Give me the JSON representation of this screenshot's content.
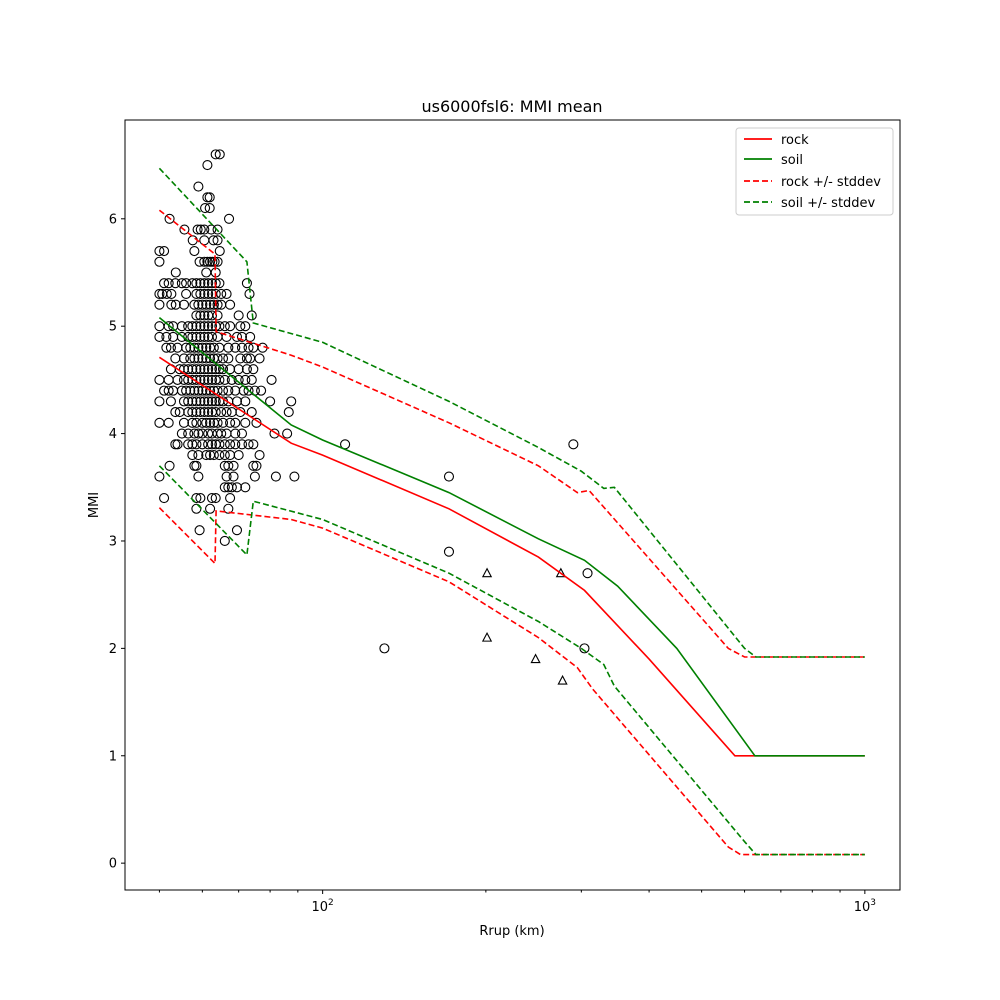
{
  "chart_data": {
    "type": "scatter",
    "title": "us6000fsl6: MMI mean",
    "xlabel": "Rrup (km)",
    "ylabel": "MMI",
    "xscale": "log",
    "xlim": [
      43.2,
      1161
    ],
    "ylim": [
      -0.25,
      6.92
    ],
    "yticks": [
      "0",
      "1",
      "2",
      "3",
      "4",
      "5",
      "6"
    ],
    "xticks": [
      {
        "value": 100,
        "base": "10",
        "exp": "2"
      },
      {
        "value": 1000,
        "base": "10",
        "exp": "3"
      }
    ],
    "legend": {
      "placement": "top-right",
      "entries": [
        "rock",
        "soil",
        "rock +/- stddev",
        "soil +/- stddev"
      ]
    },
    "colors": {
      "rock": "#ff0000",
      "soil": "#008000",
      "marker": "#000000"
    },
    "lines": [
      {
        "name": "rock",
        "color": "#ff0000",
        "dashed": false,
        "points": [
          [
            50,
            4.71
          ],
          [
            87.5,
            3.91
          ],
          [
            100,
            3.8
          ],
          [
            171,
            3.3
          ],
          [
            250,
            2.85
          ],
          [
            304,
            2.54
          ],
          [
            400,
            1.9
          ],
          [
            576,
            1.0
          ],
          [
            1000,
            1.0
          ]
        ]
      },
      {
        "name": "soil",
        "color": "#008000",
        "dashed": false,
        "points": [
          [
            50,
            5.08
          ],
          [
            87.5,
            4.08
          ],
          [
            100,
            3.94
          ],
          [
            171,
            3.45
          ],
          [
            250,
            3.02
          ],
          [
            304,
            2.82
          ],
          [
            350,
            2.58
          ],
          [
            450,
            2.0
          ],
          [
            627,
            1.0
          ],
          [
            1000,
            1.0
          ]
        ]
      },
      {
        "name": "rock + stddev",
        "color": "#ff0000",
        "dashed": true,
        "points": [
          [
            50,
            6.08
          ],
          [
            63.3,
            5.67
          ],
          [
            63.6,
            4.95
          ],
          [
            87.5,
            4.73
          ],
          [
            100,
            4.62
          ],
          [
            171,
            4.1
          ],
          [
            250,
            3.7
          ],
          [
            295,
            3.45
          ],
          [
            310,
            3.47
          ],
          [
            560,
            2.0
          ],
          [
            600,
            1.92
          ],
          [
            1000,
            1.92
          ]
        ]
      },
      {
        "name": "rock - stddev",
        "color": "#ff0000",
        "dashed": true,
        "points": [
          [
            50,
            3.31
          ],
          [
            63.3,
            2.79
          ],
          [
            63.6,
            3.28
          ],
          [
            87.5,
            3.2
          ],
          [
            100,
            3.12
          ],
          [
            171,
            2.62
          ],
          [
            250,
            2.1
          ],
          [
            295,
            1.82
          ],
          [
            315,
            1.62
          ],
          [
            560,
            0.15
          ],
          [
            590,
            0.08
          ],
          [
            1000,
            0.08
          ]
        ]
      },
      {
        "name": "soil + stddev",
        "color": "#008000",
        "dashed": true,
        "points": [
          [
            50,
            6.47
          ],
          [
            72.5,
            5.6
          ],
          [
            74.5,
            5.03
          ],
          [
            100,
            4.85
          ],
          [
            171,
            4.3
          ],
          [
            250,
            3.87
          ],
          [
            300,
            3.65
          ],
          [
            330,
            3.49
          ],
          [
            345,
            3.5
          ],
          [
            600,
            2.0
          ],
          [
            630,
            1.92
          ],
          [
            1000,
            1.92
          ]
        ]
      },
      {
        "name": "soil - stddev",
        "color": "#008000",
        "dashed": true,
        "points": [
          [
            50,
            3.7
          ],
          [
            72.5,
            2.87
          ],
          [
            74.5,
            3.37
          ],
          [
            100,
            3.2
          ],
          [
            171,
            2.7
          ],
          [
            250,
            2.25
          ],
          [
            300,
            2.0
          ],
          [
            330,
            1.85
          ],
          [
            345,
            1.65
          ],
          [
            600,
            0.2
          ],
          [
            630,
            0.08
          ],
          [
            1000,
            0.08
          ]
        ]
      }
    ],
    "circle_rows": [
      {
        "mmi": 6.6,
        "rrup": [
          63.5,
          64.6
        ]
      },
      {
        "mmi": 6.5,
        "rrup": [
          61.3
        ]
      },
      {
        "mmi": 6.3,
        "rrup": [
          59.0
        ]
      },
      {
        "mmi": 6.2,
        "rrup": [
          61.3,
          61.9
        ]
      },
      {
        "mmi": 6.1,
        "rrup": [
          60.7,
          61.9
        ]
      },
      {
        "mmi": 6.0,
        "rrup": [
          52.2,
          67.2
        ]
      },
      {
        "mmi": 5.9,
        "rrup": [
          55.6,
          58.8,
          59.6,
          60.5,
          62.3,
          64.0
        ]
      },
      {
        "mmi": 5.8,
        "rrup": [
          57.6,
          60.5,
          62.9,
          64.0
        ]
      },
      {
        "mmi": 5.7,
        "rrup": [
          50.0,
          51.0,
          58.0,
          64.6
        ]
      },
      {
        "mmi": 5.6,
        "rrup": [
          50.0,
          59.3,
          60.5,
          61.3,
          62.0,
          62.6,
          63.2,
          64.0
        ]
      },
      {
        "mmi": 5.5,
        "rrup": [
          53.6,
          61.0,
          63.5
        ]
      },
      {
        "mmi": 5.4,
        "rrup": [
          51.0,
          52.0,
          53.5,
          55.0,
          56.0,
          57.5,
          58.5,
          59.5,
          60.5,
          61.5,
          62.5,
          63.5,
          64.5,
          72.5
        ]
      },
      {
        "mmi": 5.3,
        "rrup": [
          50.0,
          50.6,
          51.6,
          52.6,
          56.0,
          58.5,
          59.5,
          60.5,
          61.5,
          62.5,
          63.5,
          65.0,
          66.5,
          73.3
        ]
      },
      {
        "mmi": 5.2,
        "rrup": [
          50.0,
          52.6,
          53.6,
          55.5,
          58.0,
          59.0,
          60.0,
          61.0,
          62.0,
          63.0,
          64.0,
          65.0,
          67.5
        ]
      },
      {
        "mmi": 5.1,
        "rrup": [
          58.5,
          59.5,
          60.5,
          61.5,
          62.5,
          64.0,
          70.0,
          74.0
        ]
      },
      {
        "mmi": 5.0,
        "rrup": [
          50.0,
          52.0,
          53.0,
          55.0,
          56.5,
          57.5,
          58.5,
          59.5,
          60.5,
          61.5,
          62.5,
          63.5,
          64.5,
          66.0,
          67.5,
          70.5,
          72.0
        ]
      },
      {
        "mmi": 4.9,
        "rrup": [
          50.0,
          51.5,
          53.0,
          55.0,
          56.5,
          57.5,
          58.5,
          59.5,
          60.5,
          61.5,
          62.5,
          64.0,
          66.5,
          69.5,
          71.0,
          73.5
        ]
      },
      {
        "mmi": 4.8,
        "rrup": [
          51.5,
          52.5,
          54.0,
          56.0,
          57.0,
          58.0,
          59.0,
          60.0,
          61.0,
          62.0,
          63.0,
          64.5,
          67.0,
          69.0,
          71.0,
          73.0,
          74.5,
          77.5
        ]
      },
      {
        "mmi": 4.7,
        "rrup": [
          53.5,
          55.5,
          57.0,
          58.0,
          59.0,
          60.0,
          61.0,
          62.0,
          63.0,
          64.0,
          65.5,
          67.0,
          70.5,
          72.5,
          73.5,
          76.5
        ]
      },
      {
        "mmi": 4.6,
        "rrup": [
          52.5,
          54.5,
          55.5,
          56.5,
          57.5,
          58.5,
          59.5,
          60.5,
          61.5,
          62.5,
          63.5,
          64.5,
          65.5,
          67.5,
          70.0,
          72.5,
          74.5
        ]
      },
      {
        "mmi": 4.5,
        "rrup": [
          50.0,
          52.0,
          54.0,
          55.5,
          56.5,
          57.5,
          58.5,
          59.5,
          60.5,
          61.5,
          62.5,
          63.5,
          64.5,
          66.0,
          68.0,
          70.0,
          72.0,
          74.0,
          80.5
        ]
      },
      {
        "mmi": 4.4,
        "rrup": [
          51.0,
          52.0,
          53.0,
          55.0,
          56.0,
          57.0,
          58.0,
          59.0,
          60.0,
          61.0,
          62.0,
          63.0,
          64.0,
          65.5,
          67.0,
          69.0,
          71.5,
          73.0,
          75.0,
          77.0
        ]
      },
      {
        "mmi": 4.3,
        "rrup": [
          50.0,
          52.5,
          55.5,
          56.5,
          57.5,
          58.5,
          59.5,
          60.5,
          61.5,
          62.5,
          63.5,
          64.5,
          65.5,
          67.0,
          69.5,
          72.0,
          80.0,
          87.5
        ]
      },
      {
        "mmi": 4.2,
        "rrup": [
          53.5,
          54.5,
          56.5,
          57.5,
          58.5,
          59.5,
          60.5,
          61.5,
          62.5,
          63.5,
          65.0,
          66.5,
          68.0,
          70.5,
          74.0,
          86.6
        ]
      },
      {
        "mmi": 4.1,
        "rrup": [
          50.0,
          52.0,
          55.5,
          57.5,
          58.5,
          60.0,
          61.0,
          62.0,
          63.0,
          64.0,
          65.5,
          67.5,
          69.0,
          72.0,
          75.5
        ]
      },
      {
        "mmi": 4.0,
        "rrup": [
          55.0,
          56.5,
          58.0,
          59.0,
          60.0,
          61.5,
          62.5,
          64.0,
          65.0,
          66.5,
          69.0,
          71.0,
          81.5,
          86.0
        ]
      },
      {
        "mmi": 3.9,
        "rrup": [
          53.5,
          54.0,
          56.5,
          57.5,
          58.5,
          60.0,
          61.5,
          62.5,
          63.5,
          64.5,
          66.0,
          67.5,
          69.0,
          71.0,
          73.0,
          74.5,
          110
        ]
      },
      {
        "mmi": 3.8,
        "rrup": [
          57.5,
          59.0,
          61.0,
          62.0,
          63.0,
          64.5,
          66.0,
          67.5,
          70.0,
          76.5
        ]
      },
      {
        "mmi": 3.7,
        "rrup": [
          52.2,
          58.0,
          58.5,
          66.0,
          67.0,
          68.5,
          74.5,
          75.5
        ]
      },
      {
        "mmi": 3.6,
        "rrup": [
          50.0,
          59.0,
          66.5,
          68.5,
          75.0,
          82.0,
          88.7,
          171
        ]
      },
      {
        "mmi": 3.5,
        "rrup": [
          66.0,
          67.0,
          68.0,
          69.5,
          72.0
        ]
      },
      {
        "mmi": 3.4,
        "rrup": [
          51.0,
          58.5,
          59.5,
          62.5,
          63.5,
          67.5
        ]
      },
      {
        "mmi": 3.3,
        "rrup": [
          58.5,
          62.0,
          67.0
        ]
      },
      {
        "mmi": 3.1,
        "rrup": [
          59.3,
          69.5
        ]
      },
      {
        "mmi": 3.0,
        "rrup": [
          66.0
        ]
      },
      {
        "mmi": 3.9,
        "rrup": [
          290
        ]
      },
      {
        "mmi": 2.9,
        "rrup": [
          171
        ]
      },
      {
        "mmi": 2.7,
        "rrup": [
          308
        ]
      },
      {
        "mmi": 2.0,
        "rrup": [
          130,
          304
        ]
      }
    ],
    "triangles": [
      [
        201,
        2.7
      ],
      [
        201,
        2.1
      ],
      [
        247,
        1.9
      ],
      [
        275,
        2.7
      ],
      [
        277,
        1.7
      ]
    ]
  }
}
